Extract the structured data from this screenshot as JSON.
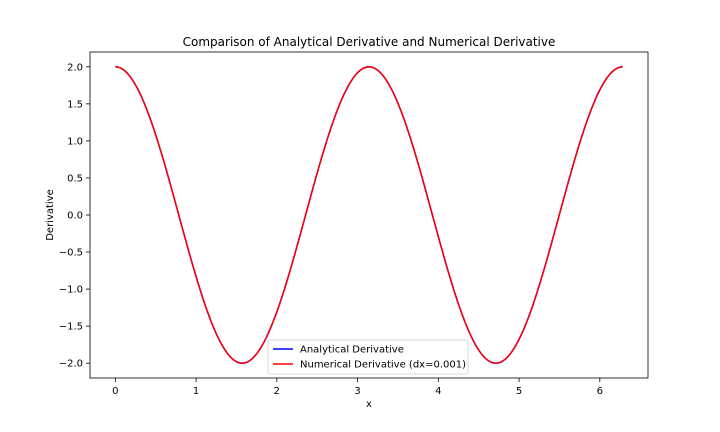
{
  "chart_data": {
    "type": "line",
    "title": "Comparison of Analytical Derivative and Numerical Derivative",
    "xlabel": "x",
    "ylabel": "Derivative",
    "xlim": [
      -0.314,
      6.597
    ],
    "ylim": [
      -2.2,
      2.2
    ],
    "xticks": [
      0,
      1,
      2,
      3,
      4,
      5,
      6
    ],
    "xtick_labels": [
      "0",
      "1",
      "2",
      "3",
      "4",
      "5",
      "6"
    ],
    "yticks": [
      2.0,
      1.5,
      1.0,
      0.5,
      0.0,
      -0.5,
      -1.0,
      -1.5,
      -2.0
    ],
    "ytick_labels": [
      "2.0",
      "1.5",
      "1.0",
      "0.5",
      "0.0",
      "−0.5",
      "−1.0",
      "−1.5",
      "−2.0"
    ],
    "grid": false,
    "legend_position": "bottom-center",
    "x_range": [
      0,
      6.2832
    ],
    "series": [
      {
        "name": "Analytical Derivative",
        "color": "#0000ff",
        "function": "2*cos(2x)",
        "x": [
          0,
          0.3927,
          0.7854,
          1.1781,
          1.5708,
          1.9635,
          2.3562,
          2.7489,
          3.1416,
          3.5343,
          3.927,
          4.3197,
          4.7124,
          5.1051,
          5.4978,
          5.8905,
          6.2832
        ],
        "y": [
          2.0,
          1.414,
          0.0,
          -1.414,
          -2.0,
          -1.414,
          0.0,
          1.414,
          2.0,
          1.414,
          0.0,
          -1.414,
          -2.0,
          -1.414,
          0.0,
          1.414,
          2.0
        ]
      },
      {
        "name": "Numerical Derivative (dx=0.001)",
        "color": "#ff0000",
        "function": "2*cos(2x)",
        "x": [
          0,
          0.3927,
          0.7854,
          1.1781,
          1.5708,
          1.9635,
          2.3562,
          2.7489,
          3.1416,
          3.5343,
          3.927,
          4.3197,
          4.7124,
          5.1051,
          5.4978,
          5.8905,
          6.2832
        ],
        "y": [
          2.0,
          1.414,
          0.0,
          -1.414,
          -2.0,
          -1.414,
          0.0,
          1.414,
          2.0,
          1.414,
          0.0,
          -1.414,
          -2.0,
          -1.414,
          0.0,
          1.414,
          2.0
        ]
      }
    ]
  }
}
